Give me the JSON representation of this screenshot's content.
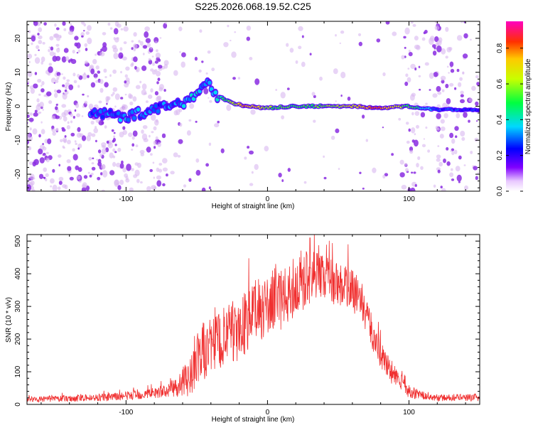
{
  "figure_title": "S225.2026.068.19.52.C25",
  "colors": {
    "snr_line": "#f03030",
    "spectrum_ridge": "#10d8c8",
    "speckle": "#8a2be2",
    "speckle_light": "#d8b8f0"
  },
  "chart_data": [
    {
      "type": "heatmap",
      "title": "S225.2026.068.19.52.C25",
      "xlabel": "Height of straight line (km)",
      "ylabel": "Frequency (Hz)",
      "xlim": [
        -170,
        150
      ],
      "ylim": [
        -25,
        25
      ],
      "xticks": [
        -100,
        0,
        100
      ],
      "xtick_labels": [
        "-100",
        "0",
        "100"
      ],
      "yticks": [
        -20,
        -10,
        0,
        10,
        20
      ],
      "ytick_labels": [
        "-20",
        "-10",
        "0",
        "10",
        "20"
      ],
      "colorbar": {
        "label": "Normalized spectral amplitude",
        "range": [
          0,
          0.95
        ],
        "ticks": [
          0,
          0.2,
          0.4,
          0.6,
          0.8
        ],
        "tick_labels": [
          "0.0",
          "0.2",
          "0.4",
          "0.6",
          "0.8"
        ]
      },
      "ridge": {
        "x": [
          -120,
          -100,
          -80,
          -60,
          -50,
          -42,
          -35,
          -25,
          -15,
          0,
          20,
          40,
          60,
          80,
          100,
          120,
          150
        ],
        "freq": [
          -2,
          -3,
          -1,
          1,
          4,
          7,
          3,
          1,
          0,
          -0.5,
          0,
          0,
          0,
          -0.5,
          0,
          -1,
          -1
        ],
        "amplitude": [
          0.3,
          0.35,
          0.3,
          0.35,
          0.4,
          0.3,
          0.45,
          0.6,
          0.85,
          0.6,
          0.5,
          0.6,
          0.7,
          0.85,
          0.55,
          0.3,
          0.25
        ]
      }
    },
    {
      "type": "line",
      "xlabel": "Height of straight line (km)",
      "ylabel": "SNR (10 * v/v)",
      "xlim": [
        -170,
        150
      ],
      "ylim": [
        0,
        520
      ],
      "xticks": [
        -100,
        0,
        100
      ],
      "xtick_labels": [
        "-100",
        "0",
        "100"
      ],
      "yticks": [
        0,
        100,
        200,
        300,
        400,
        500
      ],
      "ytick_labels": [
        "0",
        "100",
        "200",
        "300",
        "400",
        "500"
      ],
      "envelope": {
        "x": [
          -170,
          -140,
          -110,
          -90,
          -70,
          -55,
          -48,
          -40,
          -30,
          -20,
          -10,
          0,
          10,
          20,
          28,
          35,
          45,
          55,
          65,
          70,
          75,
          85,
          100,
          115,
          130,
          150
        ],
        "mean": [
          15,
          18,
          22,
          30,
          42,
          80,
          150,
          180,
          200,
          230,
          280,
          300,
          320,
          350,
          390,
          400,
          380,
          360,
          330,
          280,
          200,
          110,
          40,
          20,
          20,
          22
        ],
        "noise": [
          8,
          10,
          12,
          15,
          20,
          60,
          90,
          90,
          100,
          100,
          100,
          90,
          90,
          90,
          90,
          70,
          70,
          70,
          60,
          60,
          50,
          40,
          20,
          10,
          10,
          12
        ]
      },
      "peaks": [
        {
          "x": 30,
          "y": 510
        },
        {
          "x": 57,
          "y": 490
        }
      ]
    }
  ]
}
